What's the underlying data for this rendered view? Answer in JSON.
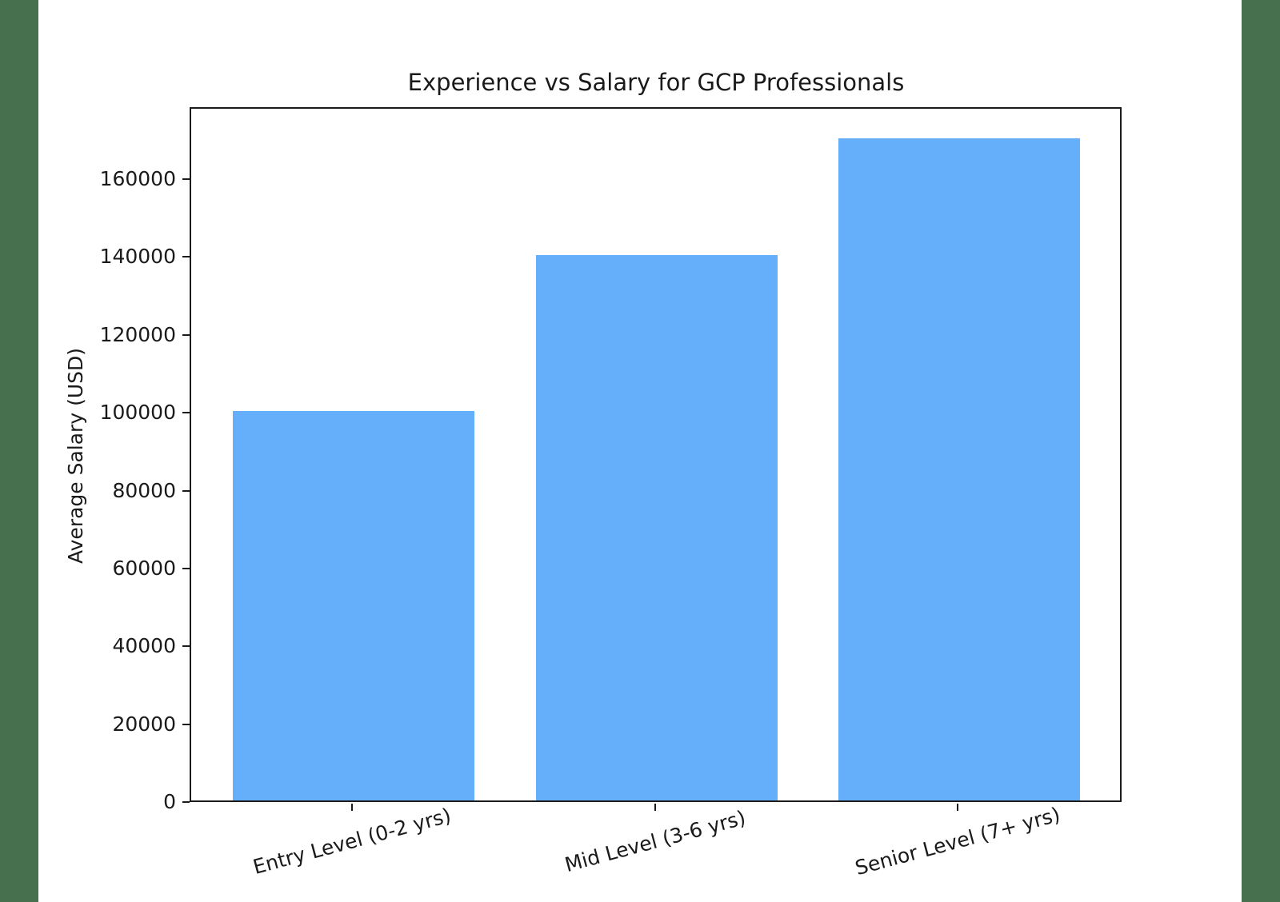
{
  "page": {
    "background_color": "#ffffff",
    "left_strip_color": "#47714e",
    "right_strip_color": "#47714e"
  },
  "chart_data": {
    "type": "bar",
    "title": "Experience vs Salary for GCP Professionals",
    "xlabel": "",
    "ylabel": "Average Salary (USD)",
    "categories": [
      "Entry Level (0-2 yrs)",
      "Mid Level (3-6 yrs)",
      "Senior Level (7+ yrs)"
    ],
    "values": [
      100000,
      140000,
      170000
    ],
    "yticks": [
      0,
      20000,
      40000,
      60000,
      80000,
      100000,
      120000,
      140000,
      160000
    ],
    "ylim": [
      0,
      178500
    ],
    "bar_color": "#64aefa",
    "axis_color": "#1b1b1b",
    "x_tick_rotation_deg": 15,
    "grid": false,
    "legend": "none"
  }
}
